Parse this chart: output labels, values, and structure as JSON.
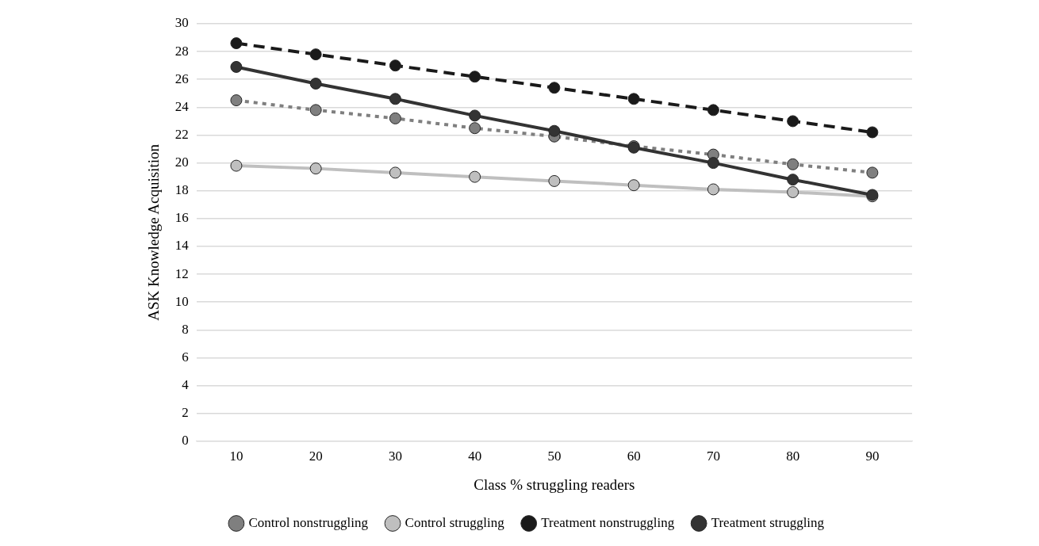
{
  "chart_data": {
    "type": "line",
    "xlabel": "Class % struggling readers",
    "ylabel": "ASK Knowledge Acquisition",
    "categories": [
      "10",
      "20",
      "30",
      "40",
      "50",
      "60",
      "70",
      "80",
      "90"
    ],
    "series": [
      {
        "name": "Control nonstruggling",
        "color": "#7f7f7f",
        "line_style": "dotted",
        "values": [
          24.5,
          23.8,
          23.2,
          22.5,
          21.9,
          21.2,
          20.6,
          19.9,
          19.3
        ]
      },
      {
        "name": "Control struggling",
        "color": "#bfbfbf",
        "line_style": "solid",
        "values": [
          19.8,
          19.6,
          19.3,
          19.0,
          18.7,
          18.4,
          18.1,
          17.9,
          17.6
        ]
      },
      {
        "name": "Treatment nonstruggling",
        "color": "#1a1a1a",
        "line_style": "dashed",
        "values": [
          28.6,
          27.8,
          27.0,
          26.2,
          25.4,
          24.6,
          23.8,
          23.0,
          22.2
        ]
      },
      {
        "name": "Treatment struggling",
        "color": "#333333",
        "line_style": "solid",
        "values": [
          26.9,
          25.7,
          24.6,
          23.4,
          22.3,
          21.1,
          20.0,
          18.8,
          17.7
        ]
      }
    ],
    "ylim": [
      0,
      30
    ],
    "yticks": [
      0,
      2,
      4,
      6,
      8,
      10,
      12,
      14,
      16,
      18,
      20,
      22,
      24,
      26,
      28,
      30
    ],
    "grid": "y",
    "legend": "bottom",
    "marker": "circle"
  }
}
